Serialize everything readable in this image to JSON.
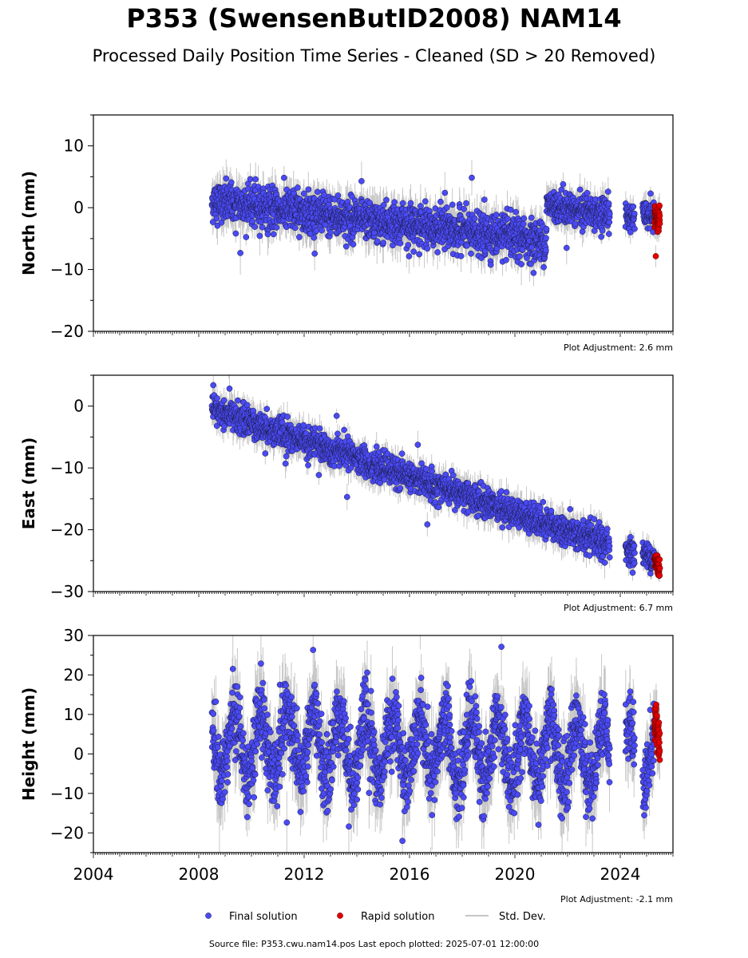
{
  "title": "P353 (SwensenButID2008) NAM14",
  "subtitle": "Processed Daily Position Time Series - Cleaned (SD > 20 Removed)",
  "footer": "Source file: P353.cwu.nam14.pos  Last epoch plotted: 2025-07-01 12:00:00",
  "colors": {
    "final": "#4a4af5",
    "rapid": "#e00000",
    "stddev": "#b4b4b4",
    "edge": "#1a1a40"
  },
  "legend": {
    "final": "Final solution",
    "rapid": "Rapid solution",
    "stddev": "Std. Dev."
  },
  "chart_data": [
    {
      "type": "scatter",
      "ylabel": "North (mm)",
      "xlim": [
        2004,
        2026
      ],
      "ylim": [
        -20,
        15
      ],
      "yticks": [
        -20,
        -10,
        0,
        10
      ],
      "adjustment": "Plot Adjustment: 2.6 mm",
      "trend_segments": [
        {
          "x": [
            2008.5,
            2021.2
          ],
          "y": [
            1.0,
            -5.5
          ],
          "scatter": 1.6
        },
        {
          "x": [
            2021.2,
            2023.6
          ],
          "y": [
            0.5,
            -1.0
          ],
          "scatter": 1.3
        },
        {
          "x": [
            2024.2,
            2024.55
          ],
          "y": [
            -1.2,
            -1.8
          ],
          "scatter": 1.0
        },
        {
          "x": [
            2024.85,
            2025.3
          ],
          "y": [
            -0.8,
            -1.5
          ],
          "scatter": 1.0
        }
      ],
      "rapid_segment": {
        "x": [
          2025.3,
          2025.5
        ],
        "y": [
          -1.5,
          -2.2
        ],
        "scatter": 1.0
      }
    },
    {
      "type": "scatter",
      "ylabel": "East (mm)",
      "xlim": [
        2004,
        2026
      ],
      "ylim": [
        -30,
        5
      ],
      "yticks": [
        -30,
        -20,
        -10,
        0
      ],
      "adjustment": "Plot Adjustment: 6.7 mm",
      "trend_segments": [
        {
          "x": [
            2008.5,
            2023.6
          ],
          "y": [
            -0.5,
            -22.5
          ],
          "scatter": 1.2
        },
        {
          "x": [
            2024.2,
            2024.55
          ],
          "y": [
            -23.0,
            -23.8
          ],
          "scatter": 1.0
        },
        {
          "x": [
            2024.85,
            2025.3
          ],
          "y": [
            -23.8,
            -24.8
          ],
          "scatter": 1.0
        }
      ],
      "rapid_segment": {
        "x": [
          2025.3,
          2025.5
        ],
        "y": [
          -25.0,
          -26.0
        ],
        "scatter": 0.8
      }
    },
    {
      "type": "scatter",
      "ylabel": "Height (mm)",
      "xlabel": "",
      "xlim": [
        2004,
        2026
      ],
      "ylim": [
        -25,
        30
      ],
      "yticks": [
        -20,
        -10,
        0,
        10,
        20,
        30
      ],
      "xticks": [
        2004,
        2008,
        2012,
        2016,
        2020,
        2024
      ],
      "adjustment": "Plot Adjustment: -2.1 mm",
      "seasonal_amplitude": 8,
      "trend_segments": [
        {
          "x": [
            2008.5,
            2023.6
          ],
          "y": [
            3.0,
            0.0
          ],
          "scatter": 4.5
        },
        {
          "x": [
            2024.2,
            2024.55
          ],
          "y": [
            0.0,
            -1.0
          ],
          "scatter": 4.0
        },
        {
          "x": [
            2024.85,
            2025.3
          ],
          "y": [
            -1.0,
            -2.0
          ],
          "scatter": 4.0
        }
      ],
      "rapid_segment": {
        "x": [
          2025.3,
          2025.5
        ],
        "y": [
          -1.0,
          -2.0
        ],
        "scatter": 3.0
      }
    }
  ]
}
